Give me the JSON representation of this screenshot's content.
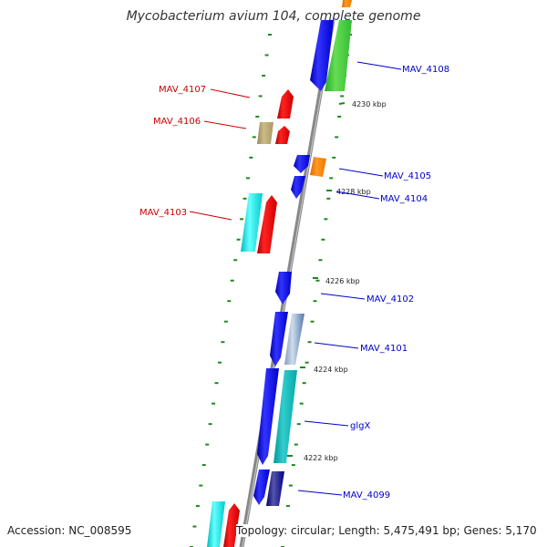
{
  "title": "Mycobacterium avium 104, complete genome",
  "accession": "Accession: NC_008595",
  "topology": "Topology: circular; Length: 5,475,491 bp; Genes: 5,170",
  "colors": {
    "label_forward": "#cc0000",
    "label_reverse": "#0000cc",
    "tick": "#1a8a1a",
    "backbone": "#888888"
  },
  "ticks": [
    {
      "label": "4230 kbp"
    },
    {
      "label": "4228 kbp"
    },
    {
      "label": "4226 kbp"
    },
    {
      "label": "4224 kbp"
    },
    {
      "label": "4222 kbp"
    }
  ],
  "genes": [
    {
      "name": "MAV_4108",
      "strand": "reverse"
    },
    {
      "name": "MAV_4107",
      "strand": "forward"
    },
    {
      "name": "MAV_4106",
      "strand": "forward"
    },
    {
      "name": "MAV_4105",
      "strand": "reverse"
    },
    {
      "name": "MAV_4104",
      "strand": "reverse"
    },
    {
      "name": "MAV_4103",
      "strand": "forward"
    },
    {
      "name": "MAV_4102",
      "strand": "reverse"
    },
    {
      "name": "MAV_4101",
      "strand": "reverse"
    },
    {
      "name": "glgX",
      "strand": "reverse"
    },
    {
      "name": "MAV_4099",
      "strand": "reverse"
    }
  ]
}
